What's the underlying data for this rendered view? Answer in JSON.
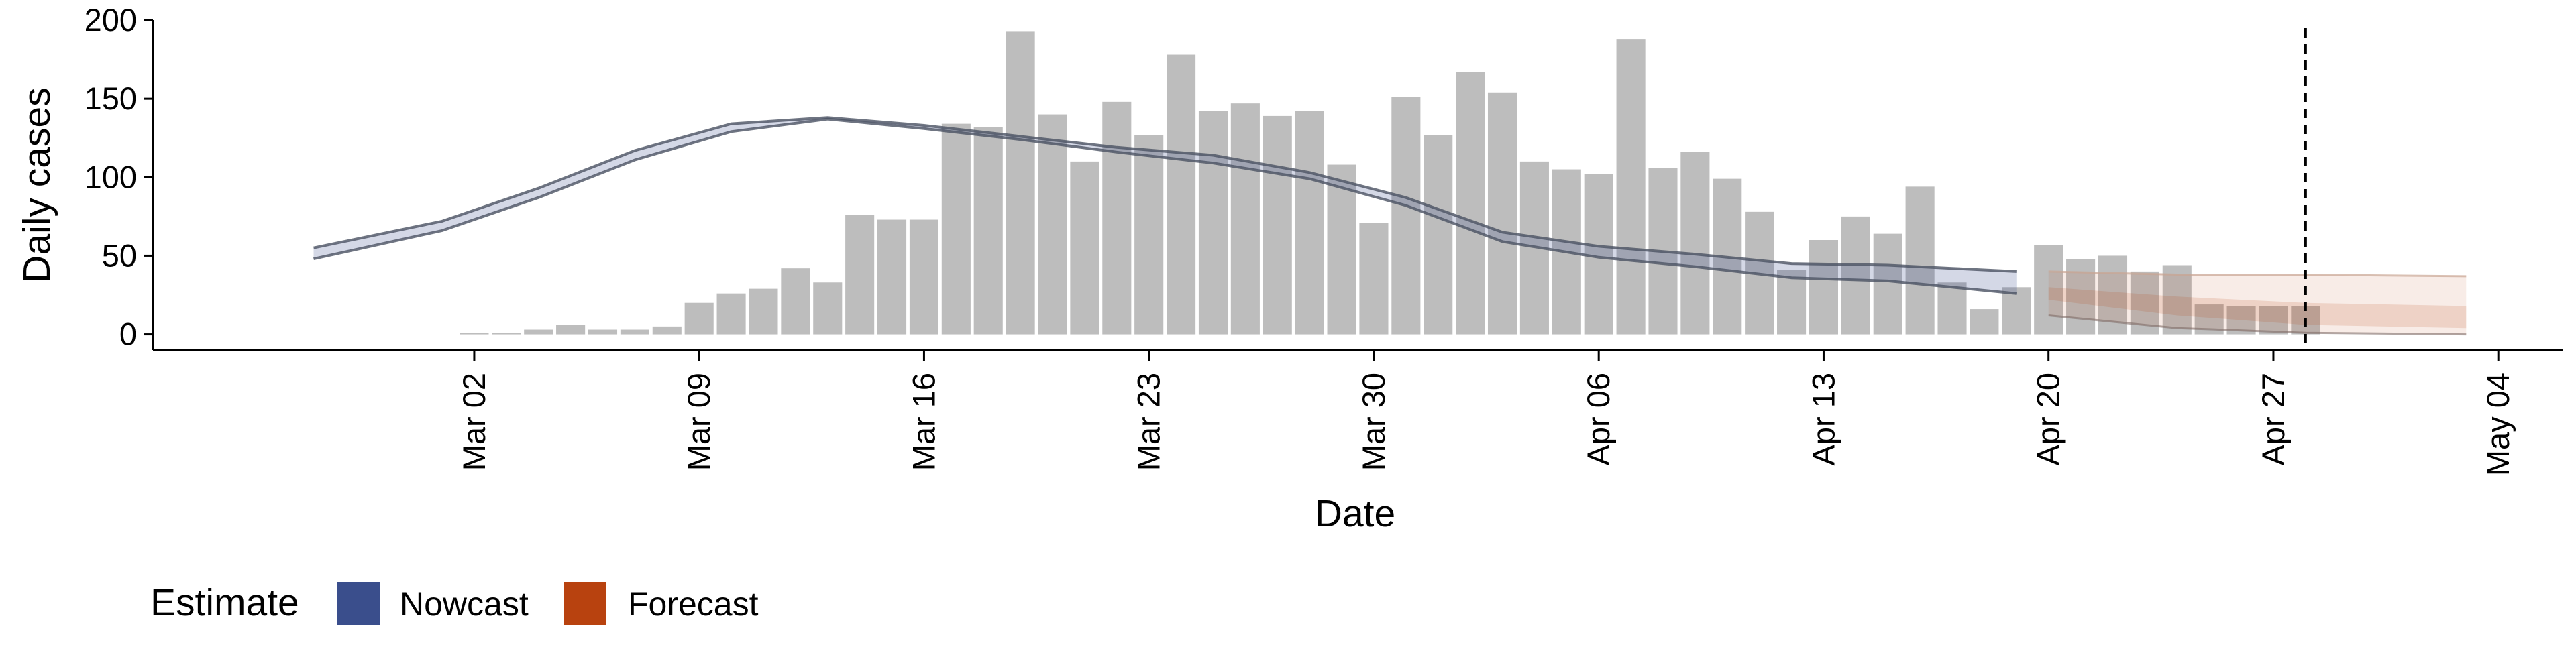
{
  "chart_data": {
    "type": "bar",
    "xlabel": "Date",
    "ylabel": "Daily cases",
    "ylim": [
      -10,
      200
    ],
    "y_ticks": [
      "0",
      "50",
      "100",
      "150",
      "200"
    ],
    "x_ticks": [
      "Mar 02",
      "Mar 09",
      "Mar 16",
      "Mar 23",
      "Mar 30",
      "Apr 06",
      "Apr 13",
      "Apr 20",
      "Apr 27",
      "May 04"
    ],
    "x_tick_dates": [
      "2020-03-02",
      "2020-03-09",
      "2020-03-16",
      "2020-03-23",
      "2020-03-30",
      "2020-04-06",
      "2020-04-13",
      "2020-04-20",
      "2020-04-27",
      "2020-05-04"
    ],
    "x_range": [
      "2020-02-21",
      "2020-05-06"
    ],
    "grid": false,
    "reference_line_date": "2020-04-28",
    "bars": {
      "dates": [
        "2020-03-02",
        "2020-03-03",
        "2020-03-04",
        "2020-03-05",
        "2020-03-06",
        "2020-03-07",
        "2020-03-08",
        "2020-03-09",
        "2020-03-10",
        "2020-03-11",
        "2020-03-12",
        "2020-03-13",
        "2020-03-14",
        "2020-03-15",
        "2020-03-16",
        "2020-03-17",
        "2020-03-18",
        "2020-03-19",
        "2020-03-20",
        "2020-03-21",
        "2020-03-22",
        "2020-03-23",
        "2020-03-24",
        "2020-03-25",
        "2020-03-26",
        "2020-03-27",
        "2020-03-28",
        "2020-03-29",
        "2020-03-30",
        "2020-03-31",
        "2020-04-01",
        "2020-04-02",
        "2020-04-03",
        "2020-04-04",
        "2020-04-05",
        "2020-04-06",
        "2020-04-07",
        "2020-04-08",
        "2020-04-09",
        "2020-04-10",
        "2020-04-11",
        "2020-04-12",
        "2020-04-13",
        "2020-04-14",
        "2020-04-15",
        "2020-04-16",
        "2020-04-17",
        "2020-04-18",
        "2020-04-19",
        "2020-04-20",
        "2020-04-21",
        "2020-04-22",
        "2020-04-23",
        "2020-04-24",
        "2020-04-25",
        "2020-04-26",
        "2020-04-27",
        "2020-04-28"
      ],
      "values": [
        1,
        1,
        3,
        6,
        3,
        3,
        5,
        20,
        26,
        29,
        42,
        33,
        76,
        73,
        73,
        134,
        132,
        193,
        140,
        110,
        148,
        127,
        178,
        142,
        147,
        139,
        142,
        108,
        71,
        151,
        127,
        167,
        154,
        110,
        105,
        102,
        188,
        106,
        116,
        99,
        78,
        41,
        60,
        75,
        64,
        94,
        33,
        16,
        30,
        57,
        48,
        50,
        40,
        44,
        19,
        18,
        18,
        18
      ]
    },
    "series": [
      {
        "name": "Nowcast",
        "color": "#3A4E8C",
        "dates": [
          "2020-02-26",
          "2020-03-01",
          "2020-03-04",
          "2020-03-07",
          "2020-03-10",
          "2020-03-13",
          "2020-03-16",
          "2020-03-19",
          "2020-03-22",
          "2020-03-25",
          "2020-03-28",
          "2020-03-31",
          "2020-04-03",
          "2020-04-06",
          "2020-04-09",
          "2020-04-12",
          "2020-04-15",
          "2020-04-17",
          "2020-04-19"
        ],
        "upper": [
          55,
          72,
          93,
          117,
          134,
          138,
          133,
          126,
          119,
          114,
          103,
          87,
          65,
          56,
          51,
          45,
          44,
          42,
          40
        ],
        "lower": [
          48,
          66,
          87,
          111,
          129,
          137,
          131,
          124,
          116,
          109,
          99,
          82,
          59,
          49,
          43,
          36,
          34,
          30,
          26
        ]
      },
      {
        "name": "Forecast",
        "color": "#B8420F",
        "dates": [
          "2020-04-20",
          "2020-04-24",
          "2020-04-28",
          "2020-05-03"
        ],
        "upper": [
          40,
          38,
          38,
          37
        ],
        "lower": [
          12,
          4,
          1,
          0
        ],
        "inner_upper": [
          30,
          24,
          20,
          18
        ],
        "inner_lower": [
          22,
          12,
          6,
          4
        ]
      }
    ],
    "legend": {
      "title": "Estimate",
      "position": "bottom-left",
      "entries": [
        {
          "label": "Nowcast",
          "color": "#3A4E8C"
        },
        {
          "label": "Forecast",
          "color": "#B8420F"
        }
      ]
    }
  }
}
